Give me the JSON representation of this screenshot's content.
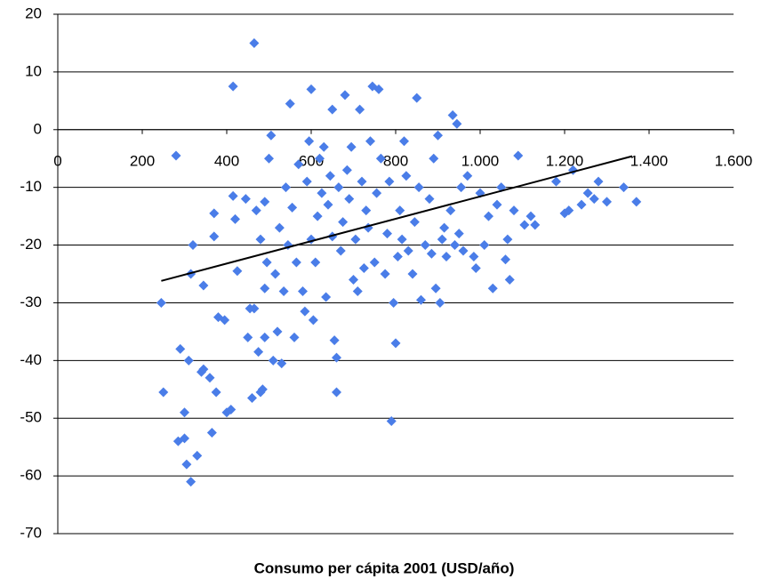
{
  "chart_data": {
    "type": "scatter",
    "xlabel": "Consumo per cápita 2001 (USD/año)",
    "color": "#4a7de8",
    "xlim": [
      0,
      1600
    ],
    "ylim": [
      -70,
      20
    ],
    "xticks": [
      0,
      200,
      400,
      600,
      800,
      {
        "value": 1000,
        "label": "1.000"
      },
      {
        "value": 1200,
        "label": "1.200"
      },
      {
        "value": 1400,
        "label": "1.400"
      },
      {
        "value": 1600,
        "label": "1.600"
      }
    ],
    "yticks": [
      -70,
      -60,
      -50,
      -40,
      -30,
      -20,
      -10,
      0,
      10,
      20
    ],
    "grid": true,
    "trendline": {
      "x": [
        245,
        1360
      ],
      "y": [
        -26.2,
        -4.6
      ]
    },
    "x": [
      245,
      250,
      280,
      285,
      290,
      300,
      300,
      305,
      310,
      315,
      315,
      320,
      330,
      340,
      345,
      345,
      360,
      365,
      370,
      370,
      375,
      380,
      395,
      400,
      410,
      415,
      415,
      420,
      425,
      445,
      450,
      455,
      460,
      465,
      465,
      470,
      475,
      480,
      480,
      485,
      490,
      490,
      490,
      495,
      500,
      505,
      510,
      515,
      520,
      525,
      530,
      535,
      540,
      545,
      550,
      555,
      560,
      565,
      570,
      580,
      585,
      590,
      595,
      600,
      600,
      605,
      610,
      615,
      620,
      625,
      630,
      635,
      640,
      645,
      650,
      650,
      655,
      660,
      660,
      665,
      670,
      675,
      680,
      685,
      690,
      695,
      700,
      705,
      710,
      715,
      720,
      725,
      730,
      735,
      740,
      745,
      750,
      755,
      760,
      765,
      775,
      780,
      785,
      790,
      795,
      800,
      805,
      810,
      815,
      820,
      825,
      830,
      840,
      845,
      850,
      855,
      860,
      870,
      880,
      885,
      890,
      895,
      900,
      905,
      910,
      915,
      920,
      930,
      935,
      940,
      945,
      950,
      955,
      960,
      970,
      985,
      990,
      1000,
      1010,
      1020,
      1030,
      1040,
      1050,
      1060,
      1065,
      1070,
      1080,
      1090,
      1105,
      1120,
      1130,
      1180,
      1200,
      1210,
      1220,
      1240,
      1255,
      1270,
      1280,
      1300,
      1340,
      1370
    ],
    "y": [
      -30,
      -45.5,
      -4.5,
      -54,
      -38,
      -49,
      -53.5,
      -58,
      -40,
      -61,
      -25,
      -20,
      -56.5,
      -42,
      -27,
      -41.5,
      -43,
      -52.5,
      -14.5,
      -18.5,
      -45.5,
      -32.5,
      -33,
      -49,
      -48.5,
      7.5,
      -11.5,
      -15.5,
      -24.5,
      -12,
      -36,
      -31,
      -46.5,
      -31,
      15,
      -14,
      -38.5,
      -19,
      -45.5,
      -45,
      -36,
      -27.5,
      -12.5,
      -23,
      -5,
      -1,
      -40,
      -25,
      -35,
      -17,
      -40.5,
      -28,
      -10,
      -20,
      4.5,
      -13.5,
      -36,
      -23,
      -6,
      -28,
      -31.5,
      -9,
      -2,
      7,
      -19,
      -33,
      -23,
      -15,
      -5,
      -11,
      -3,
      -29,
      -13,
      -8,
      3.5,
      -18.5,
      -36.5,
      -39.5,
      -45.5,
      -10,
      -21,
      -16,
      6,
      -7,
      -12,
      -3,
      -26,
      -19,
      -28,
      3.5,
      -9,
      -24,
      -14,
      -17,
      -2,
      7.5,
      -23,
      -11,
      7,
      -5,
      -25,
      -18,
      -9,
      -50.5,
      -30,
      -37,
      -22,
      -14,
      -19,
      -2,
      -8,
      -21,
      -25,
      -16,
      5.5,
      -10,
      -29.5,
      -20,
      -12,
      -21.5,
      -5,
      -27.5,
      -1,
      -30,
      -19,
      -17,
      -22,
      -14,
      2.5,
      -20,
      1,
      -18,
      -10,
      -21,
      -8,
      -22,
      -24,
      -11,
      -20,
      -15,
      -27.5,
      -13,
      -10,
      -22.5,
      -19,
      -26,
      -14,
      -4.5,
      -16.5,
      -15,
      -16.5,
      -9,
      -14.5,
      -14,
      -7,
      -13,
      -11,
      -12,
      -9,
      -12.5,
      -10,
      -12.5
    ]
  }
}
